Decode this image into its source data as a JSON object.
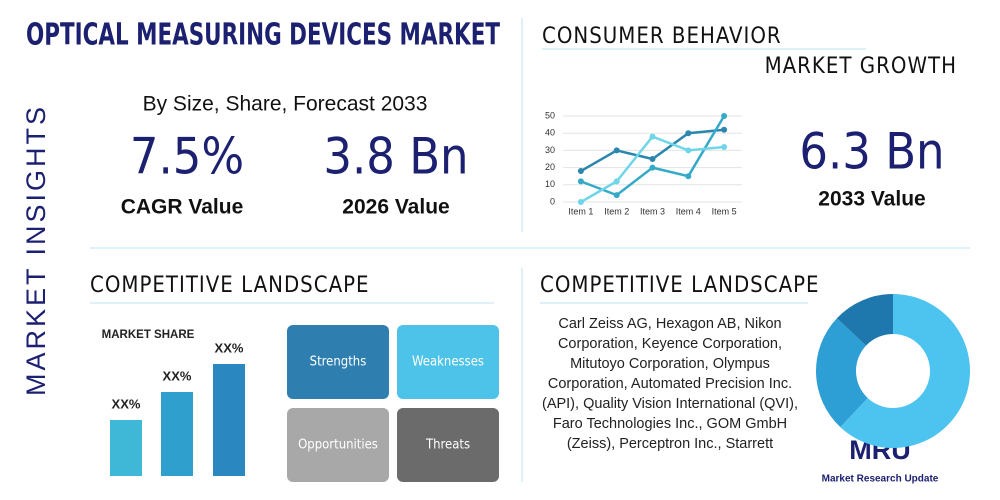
{
  "header": {
    "title": "OPTICAL MEASURING DEVICES MARKET",
    "side_label": "MARKET INSIGHTS"
  },
  "stats": {
    "subtitle": "By Size, Share, Forecast 2033",
    "cagr": {
      "value": "7.5%",
      "label": "CAGR Value"
    },
    "size_2026": {
      "value": "3.8 Bn",
      "label": "2026 Value"
    }
  },
  "growth": {
    "title": "CONSUMER BEHAVIOR",
    "subtitle": "MARKET GROWTH",
    "value": "6.3 Bn",
    "label": "2033 Value",
    "chart_data": {
      "type": "line",
      "categories": [
        "Item 1",
        "Item 2",
        "Item 3",
        "Item 4",
        "Item 5"
      ],
      "series": [
        {
          "color": "#2b86ad",
          "values": [
            18,
            30,
            25,
            40,
            42
          ]
        },
        {
          "color": "#34a9c8",
          "values": [
            12,
            4,
            20,
            15,
            50
          ]
        },
        {
          "color": "#6fd6ea",
          "values": [
            0,
            12,
            38,
            30,
            32
          ]
        }
      ],
      "ylim": [
        0,
        50
      ],
      "yticks": [
        0,
        10,
        20,
        30,
        40,
        50
      ],
      "grid": true
    }
  },
  "landscape_left": {
    "title": "COMPETITIVE LANDSCAPE",
    "chart_data": {
      "type": "bar",
      "title": "MARKET SHARE",
      "values": [
        20,
        30,
        40
      ],
      "labels": [
        "XX%",
        "XX%",
        "XX%"
      ],
      "colors": [
        "#3fb8d8",
        "#2f9fce",
        "#2b87bf"
      ]
    },
    "swot": [
      "Strengths",
      "Weaknesses",
      "Opportunities",
      "Threats"
    ]
  },
  "landscape_right": {
    "title": "COMPETITIVE LANDSCAPE",
    "companies": "Carl Zeiss AG, Hexagon AB, Nikon Corporation, Keyence Corporation, Mitutoyo Corporation, Olympus Corporation, Automated Precision Inc. (API), Quality Vision International (QVI), Faro Technologies Inc., GOM GmbH (Zeiss), Perceptron Inc., Starrett",
    "chart_data": {
      "type": "pie",
      "values": [
        62,
        25,
        13
      ],
      "colors": [
        "#4dc3f0",
        "#2e9fd4",
        "#1f78ad"
      ]
    }
  },
  "logo": {
    "mark": "MRU",
    "name": "Market Research Update"
  }
}
